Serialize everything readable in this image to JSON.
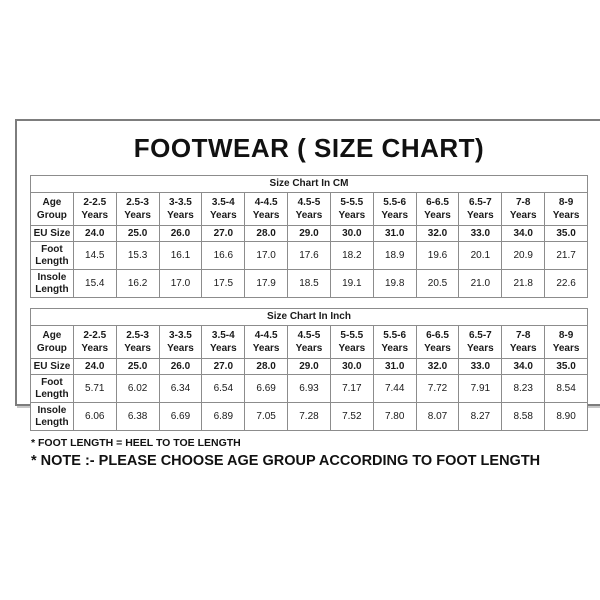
{
  "title": "FOOTWEAR ( SIZE CHART)",
  "colors": {
    "background": "#ffffff",
    "frame_border": "#7d7d7d",
    "frame_shadow": "#c8c8c8",
    "grid_line": "#8c8c8c",
    "text": "#1a1a1a"
  },
  "tables": [
    {
      "title": "Size Chart In CM",
      "age_row_label": "Age Group",
      "age_suffix": "Years",
      "age_groups": [
        "2-2.5",
        "2.5-3",
        "3-3.5",
        "3.5-4",
        "4-4.5",
        "4.5-5",
        "5-5.5",
        "5.5-6",
        "6-6.5",
        "6.5-7",
        "7-8",
        "8-9"
      ],
      "rows": [
        {
          "label": "EU Size",
          "bold": true,
          "values": [
            "24.0",
            "25.0",
            "26.0",
            "27.0",
            "28.0",
            "29.0",
            "30.0",
            "31.0",
            "32.0",
            "33.0",
            "34.0",
            "35.0"
          ]
        },
        {
          "label": "Foot Length",
          "bold": false,
          "values": [
            "14.5",
            "15.3",
            "16.1",
            "16.6",
            "17.0",
            "17.6",
            "18.2",
            "18.9",
            "19.6",
            "20.1",
            "20.9",
            "21.7"
          ]
        },
        {
          "label": "Insole Length",
          "bold": false,
          "values": [
            "15.4",
            "16.2",
            "17.0",
            "17.5",
            "17.9",
            "18.5",
            "19.1",
            "19.8",
            "20.5",
            "21.0",
            "21.8",
            "22.6"
          ]
        }
      ]
    },
    {
      "title": "Size Chart In Inch",
      "age_row_label": "Age Group",
      "age_suffix": "Years",
      "age_groups": [
        "2-2.5",
        "2.5-3",
        "3-3.5",
        "3.5-4",
        "4-4.5",
        "4.5-5",
        "5-5.5",
        "5.5-6",
        "6-6.5",
        "6.5-7",
        "7-8",
        "8-9"
      ],
      "rows": [
        {
          "label": "EU Size",
          "bold": true,
          "values": [
            "24.0",
            "25.0",
            "26.0",
            "27.0",
            "28.0",
            "29.0",
            "30.0",
            "31.0",
            "32.0",
            "33.0",
            "34.0",
            "35.0"
          ]
        },
        {
          "label": "Foot Length",
          "bold": false,
          "values": [
            "5.71",
            "6.02",
            "6.34",
            "6.54",
            "6.69",
            "6.93",
            "7.17",
            "7.44",
            "7.72",
            "7.91",
            "8.23",
            "8.54"
          ]
        },
        {
          "label": "Insole Length",
          "bold": false,
          "values": [
            "6.06",
            "6.38",
            "6.69",
            "6.89",
            "7.05",
            "7.28",
            "7.52",
            "7.80",
            "8.07",
            "8.27",
            "8.58",
            "8.90"
          ]
        }
      ]
    }
  ],
  "footnotes": [
    "* FOOT LENGTH = HEEL TO TOE LENGTH",
    "* NOTE :- PLEASE CHOOSE AGE GROUP ACCORDING TO FOOT LENGTH"
  ]
}
